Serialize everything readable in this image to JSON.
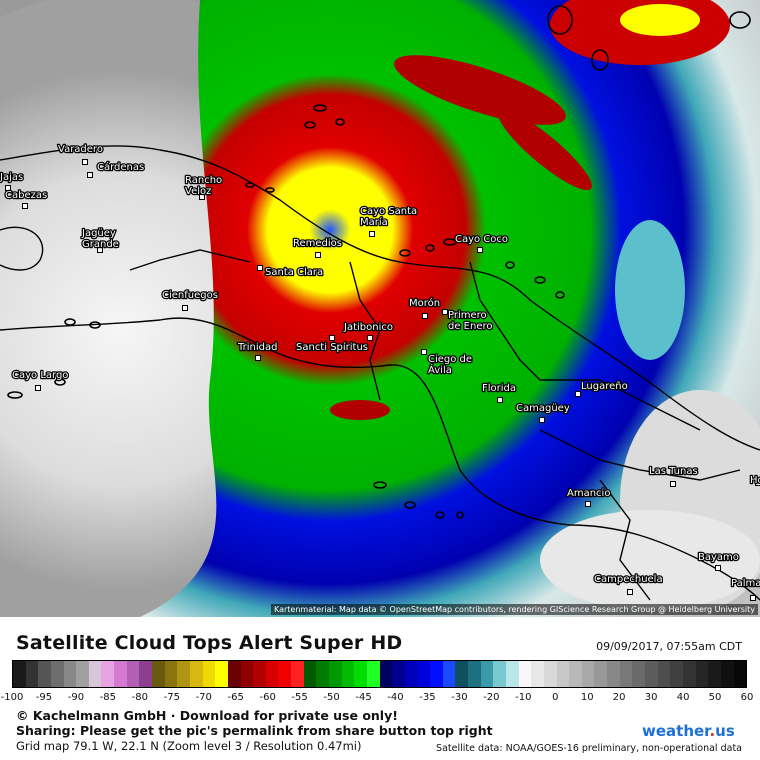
{
  "map": {
    "cities": [
      {
        "name": "Varadero"
      },
      {
        "name": "Cárdenas"
      },
      {
        "name": "Jajas"
      },
      {
        "name": "Cabezas"
      },
      {
        "name": "Rancho Veloz"
      },
      {
        "name": "Jagüey Grande"
      },
      {
        "name": "Cienfuegos"
      },
      {
        "name": "Cayo Largo"
      },
      {
        "name": "Trinidad"
      },
      {
        "name": "Santa Clara"
      },
      {
        "name": "Remedios"
      },
      {
        "name": "Cayo Santa María"
      },
      {
        "name": "Cayo Coco"
      },
      {
        "name": "Morón"
      },
      {
        "name": "Jatibonico"
      },
      {
        "name": "Sancti Spíritus"
      },
      {
        "name": "Primero de Enero"
      },
      {
        "name": "Ciego de Ávila"
      },
      {
        "name": "Florida"
      },
      {
        "name": "Camagüey"
      },
      {
        "name": "Lugareño"
      },
      {
        "name": "Las Tunas"
      },
      {
        "name": "Amancio"
      },
      {
        "name": "Bayamo"
      },
      {
        "name": "Campechuela"
      },
      {
        "name": "Palma"
      },
      {
        "name": "Ho"
      }
    ],
    "credit": "Kartenmaterial: Map data © OpenStreetMap contributors, rendering GIScience Research Group @ Heidelberg University"
  },
  "legend": {
    "title": "Satellite Cloud Tops Alert Super HD",
    "timestamp": "09/09/2017, 07:55am CDT",
    "ticks": [
      "-100",
      "-95",
      "-90",
      "-85",
      "-80",
      "-75",
      "-70",
      "-65",
      "-60",
      "-55",
      "-50",
      "-45",
      "-40",
      "-35",
      "-30",
      "-20",
      "-10",
      "0",
      "10",
      "20",
      "30",
      "40",
      "50",
      "60"
    ],
    "colors": [
      "#1a1a1a",
      "#333333",
      "#555555",
      "#6e6e6e",
      "#888888",
      "#a0a0a0",
      "#d7c5d8",
      "#e6a5e2",
      "#d47ad0",
      "#b45fb5",
      "#8c3f8e",
      "#6a5a10",
      "#8a7410",
      "#b09610",
      "#d6b810",
      "#f0d800",
      "#ffff00",
      "#6a0000",
      "#900000",
      "#b00000",
      "#d60000",
      "#f00000",
      "#ff2222",
      "#005a00",
      "#007a00",
      "#009a00",
      "#00bb00",
      "#00dd00",
      "#22ff22",
      "#000060",
      "#000090",
      "#0000bb",
      "#0000dd",
      "#0010ff",
      "#1a4aff",
      "#0e5060",
      "#1c7080",
      "#3c9aa8",
      "#78c8d0",
      "#b8e6ea",
      "#f8f8f8",
      "#e8e8e8",
      "#d8d8d8",
      "#c8c8c8",
      "#b8b8b8",
      "#a8a8a8",
      "#989898",
      "#888888",
      "#787878",
      "#6a6a6a",
      "#5c5c5c",
      "#4e4e4e",
      "#404040",
      "#333333",
      "#262626",
      "#1a1a1a",
      "#101010",
      "#080808"
    ],
    "footer_line1": "© Kachelmann GmbH · Download for private use only!",
    "footer_line2": "Sharing: Please get the pic's permalink from share button top right",
    "grid_info": "Grid map 79.1 W, 22.1 N (Zoom level 3 / Resolution 0.47mi)",
    "satellite_data": "Satellite data: NOAA/GOES-16 preliminary, non-operational data",
    "brand": {
      "w": "weather",
      "dot": ".",
      "u": "us"
    }
  }
}
